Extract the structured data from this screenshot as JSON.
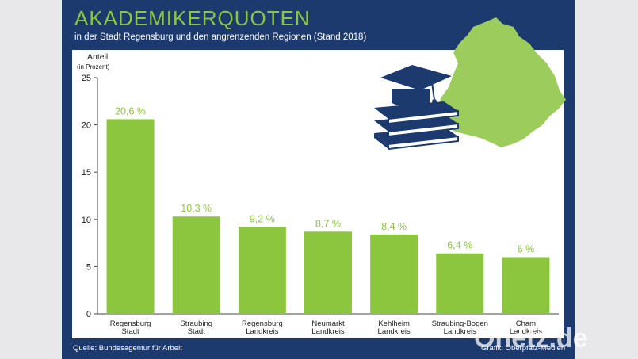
{
  "header": {
    "title": "AKADEMIKERQUOTEN",
    "subtitle": "in der Stadt Regensburg und den angrenzenden Regionen (Stand 2018)"
  },
  "footer": {
    "source": "Quelle: Bundesagentur für Arbeit",
    "credit": "Grafik: Oberpfalz-Medien",
    "watermark": "Onetz.de"
  },
  "colors": {
    "frame": "#1d3a6e",
    "bar": "#8cc63f",
    "label": "#8cc63f",
    "map": "#9ccc5c",
    "icon": "#1d3a6e"
  },
  "chart_data": {
    "type": "bar",
    "title": "AKADEMIKERQUOTEN",
    "ylabel": "Anteil",
    "ylabel_unit": "(in Prozent)",
    "ylim": [
      0,
      25
    ],
    "yticks": [
      0,
      5,
      10,
      15,
      20,
      25
    ],
    "categories": [
      [
        "Regensburg",
        "Stadt"
      ],
      [
        "Straubing",
        "Stadt"
      ],
      [
        "Regensburg",
        "Landkreis"
      ],
      [
        "Neumarkt",
        "Landkreis"
      ],
      [
        "Kehlheim",
        "Landkreis"
      ],
      [
        "Straubing-Bogen",
        "Landkreis"
      ],
      [
        "Cham",
        "Landkreis"
      ]
    ],
    "values": [
      20.6,
      10.3,
      9.2,
      8.7,
      8.4,
      6.4,
      6
    ],
    "value_labels": [
      "20,6 %",
      "10,3 %",
      "9,2 %",
      "8,7 %",
      "8,4 %",
      "6,4 %",
      "6 %"
    ]
  }
}
